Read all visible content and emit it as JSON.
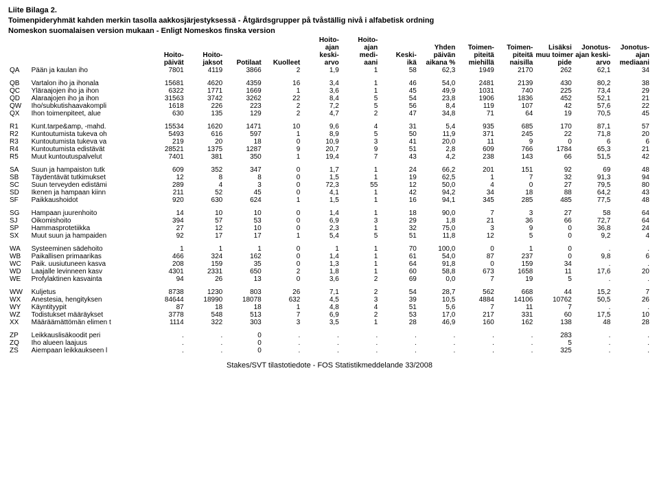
{
  "title_lines": [
    "Liite Bilaga 2.",
    "Toimenpideryhmät kahden merkin tasolla aakkosjärjestyksessä - Åtgärdsgrupper på tvåställig nivå i alfabetisk ordning",
    "Nomeskon suomalaisen version mukaan - Enligt Nomeskos finska version"
  ],
  "header_columns": [
    [
      "",
      "",
      ""
    ],
    [
      "",
      "",
      ""
    ],
    [
      "",
      "Hoito-",
      "päivät"
    ],
    [
      "",
      "Hoito-",
      "jaksot"
    ],
    [
      "",
      "",
      "Potilaat"
    ],
    [
      "",
      "",
      "Kuolleet"
    ],
    [
      "Hoito-",
      "ajan",
      "keski-",
      "arvo"
    ],
    [
      "Hoito-",
      "ajan",
      "medi-",
      "aani"
    ],
    [
      "",
      "Keski-",
      "ikä"
    ],
    [
      "Yhden",
      "päivän",
      "aikana %"
    ],
    [
      "Toimen-",
      "piteitä",
      "miehillä"
    ],
    [
      "Toimen-",
      "piteitä",
      "naisilla"
    ],
    [
      "Lisäksi",
      "muu toimen-",
      "pide"
    ],
    [
      "Jonotus-",
      "ajan keski-",
      "arvo"
    ],
    [
      "Jonotus-",
      "ajan",
      "mediaani"
    ]
  ],
  "groups": [
    {
      "rows": [
        [
          "QA",
          "Pään ja kaulan iho",
          "7801",
          "4119",
          "3866",
          "2",
          "1,9",
          "1",
          "58",
          "62,3",
          "1949",
          "2170",
          "262",
          "62,1",
          "34"
        ]
      ]
    },
    {
      "rows": [
        [
          "QB",
          "Vartalon iho ja ihonala",
          "15681",
          "4620",
          "4359",
          "16",
          "3,4",
          "1",
          "46",
          "54,0",
          "2481",
          "2139",
          "430",
          "80,2",
          "38"
        ],
        [
          "QC",
          "Yläraajojen iho ja ihon",
          "6322",
          "1771",
          "1669",
          "1",
          "3,6",
          "1",
          "45",
          "49,9",
          "1031",
          "740",
          "225",
          "73,4",
          "29"
        ],
        [
          "QD",
          "Alaraajojen iho ja ihon",
          "31563",
          "3742",
          "3262",
          "22",
          "8,4",
          "5",
          "54",
          "23,8",
          "1906",
          "1836",
          "452",
          "52,1",
          "21"
        ],
        [
          "QW",
          "Iho/subkutishaavakompli",
          "1618",
          "226",
          "223",
          "2",
          "7,2",
          "5",
          "56",
          "8,4",
          "119",
          "107",
          "42",
          "57,6",
          "22"
        ],
        [
          "QX",
          "Ihon toimenpiteet, alue",
          "630",
          "135",
          "129",
          "2",
          "4,7",
          "2",
          "47",
          "34,8",
          "71",
          "64",
          "19",
          "70,5",
          "45"
        ]
      ]
    },
    {
      "rows": [
        [
          "R1",
          "Kunt.tarpe&amp, -mahd.",
          "15534",
          "1620",
          "1471",
          "10",
          "9,6",
          "4",
          "31",
          "5,4",
          "935",
          "685",
          "170",
          "87,1",
          "57"
        ],
        [
          "R2",
          "Kuntoutumista tukeva oh",
          "5493",
          "616",
          "597",
          "1",
          "8,9",
          "5",
          "50",
          "11,9",
          "371",
          "245",
          "22",
          "71,8",
          "20"
        ],
        [
          "R3",
          "Kuntoutumista tukeva va",
          "219",
          "20",
          "18",
          "0",
          "10,9",
          "3",
          "41",
          "20,0",
          "11",
          "9",
          "0",
          "6",
          "6"
        ],
        [
          "R4",
          "Kuntoutumista edistävät",
          "28521",
          "1375",
          "1287",
          "9",
          "20,7",
          "9",
          "51",
          "2,8",
          "609",
          "766",
          "1784",
          "65,3",
          "21"
        ],
        [
          "R5",
          "Muut kuntoutuspalvelut",
          "7401",
          "381",
          "350",
          "1",
          "19,4",
          "7",
          "43",
          "4,2",
          "238",
          "143",
          "66",
          "51,5",
          "42"
        ]
      ]
    },
    {
      "rows": [
        [
          "SA",
          "Suun ja hampaiston tutk",
          "609",
          "352",
          "347",
          "0",
          "1,7",
          "1",
          "24",
          "66,2",
          "201",
          "151",
          "92",
          "69",
          "48"
        ],
        [
          "SB",
          "Täydentävät tutkimukset",
          "12",
          "8",
          "8",
          "0",
          "1,5",
          "1",
          "19",
          "62,5",
          "1",
          "7",
          "32",
          "91,3",
          "94"
        ],
        [
          "SC",
          "Suun terveyden edistämi",
          "289",
          "4",
          "3",
          "0",
          "72,3",
          "55",
          "12",
          "50,0",
          "4",
          "0",
          "27",
          "79,5",
          "80"
        ],
        [
          "SD",
          "Ikenen ja hampaan kiinn",
          "211",
          "52",
          "45",
          "0",
          "4,1",
          "1",
          "42",
          "94,2",
          "34",
          "18",
          "88",
          "64,2",
          "43"
        ],
        [
          "SF",
          "Paikkaushoidot",
          "920",
          "630",
          "624",
          "1",
          "1,5",
          "1",
          "16",
          "94,1",
          "345",
          "285",
          "485",
          "77,5",
          "48"
        ]
      ]
    },
    {
      "rows": [
        [
          "SG",
          "Hampaan juurenhoito",
          "14",
          "10",
          "10",
          "0",
          "1,4",
          "1",
          "18",
          "90,0",
          "7",
          "3",
          "27",
          "58",
          "64"
        ],
        [
          "SJ",
          "Oikomishoito",
          "394",
          "57",
          "53",
          "0",
          "6,9",
          "3",
          "29",
          "1,8",
          "21",
          "36",
          "66",
          "72,7",
          "64"
        ],
        [
          "SP",
          "Hammasprotetiikka",
          "27",
          "12",
          "10",
          "0",
          "2,3",
          "1",
          "32",
          "75,0",
          "3",
          "9",
          "0",
          "36,8",
          "24"
        ],
        [
          "SX",
          "Muut suun ja hampaiden",
          "92",
          "17",
          "17",
          "1",
          "5,4",
          "5",
          "51",
          "11,8",
          "12",
          "5",
          "0",
          "9,2",
          "4"
        ]
      ]
    },
    {
      "rows": [
        [
          "WA",
          "Systeeminen sädehoito",
          "1",
          "1",
          "1",
          "0",
          "1",
          "1",
          "70",
          "100,0",
          "0",
          "1",
          "0",
          ".",
          "."
        ],
        [
          "WB",
          "Paikallisen primaarikas",
          "466",
          "324",
          "162",
          "0",
          "1,4",
          "1",
          "61",
          "54,0",
          "87",
          "237",
          "0",
          "9,8",
          "6"
        ],
        [
          "WC",
          "Paik. uusiutuneen kasva",
          "208",
          "159",
          "35",
          "0",
          "1,3",
          "1",
          "64",
          "91,8",
          "0",
          "159",
          "34",
          ".",
          "."
        ],
        [
          "WD",
          "Laajalle levinneen kasv",
          "4301",
          "2331",
          "650",
          "2",
          "1,8",
          "1",
          "60",
          "58,8",
          "673",
          "1658",
          "11",
          "17,6",
          "20"
        ],
        [
          "WE",
          "Profylaktinen kasvainta",
          "94",
          "26",
          "13",
          "0",
          "3,6",
          "2",
          "69",
          "0,0",
          "7",
          "19",
          "5",
          ".",
          "."
        ]
      ]
    },
    {
      "rows": [
        [
          "WW",
          "Kuljetus",
          "8738",
          "1230",
          "803",
          "26",
          "7,1",
          "2",
          "54",
          "28,7",
          "562",
          "668",
          "44",
          "15,2",
          "7"
        ],
        [
          "WX",
          "Anestesia, hengityksen",
          "84644",
          "18990",
          "18078",
          "632",
          "4,5",
          "3",
          "39",
          "10,5",
          "4884",
          "14106",
          "10762",
          "50,5",
          "26"
        ],
        [
          "WY",
          "Käyntityypit",
          "87",
          "18",
          "18",
          "1",
          "4,8",
          "4",
          "51",
          "5,6",
          "7",
          "11",
          "7",
          ".",
          "."
        ],
        [
          "WZ",
          "Todistukset määräykset",
          "3778",
          "548",
          "513",
          "7",
          "6,9",
          "2",
          "53",
          "17,0",
          "217",
          "331",
          "60",
          "17,5",
          "10"
        ],
        [
          "XX",
          "Määräämättömän elimen t",
          "1114",
          "322",
          "303",
          "3",
          "3,5",
          "1",
          "28",
          "46,9",
          "160",
          "162",
          "138",
          "48",
          "28"
        ]
      ]
    },
    {
      "rows": [
        [
          "ZP",
          "Leikkauslisäkoodit peri",
          ".",
          ".",
          "0",
          ".",
          ".",
          ".",
          ".",
          ".",
          ".",
          ".",
          "283",
          ".",
          "."
        ],
        [
          "ZQ",
          "Iho alueen laajuus",
          ".",
          ".",
          "0",
          ".",
          ".",
          ".",
          ".",
          ".",
          ".",
          ".",
          "5",
          ".",
          "."
        ],
        [
          "ZS",
          "Aiempaan leikkaukseen l",
          ".",
          ".",
          "0",
          ".",
          ".",
          ".",
          ".",
          ".",
          ".",
          ".",
          "325",
          ".",
          "."
        ]
      ]
    }
  ],
  "footer": "Stakes/SVT tilastotiedote - FOS Statistikmeddelande 33/2008"
}
